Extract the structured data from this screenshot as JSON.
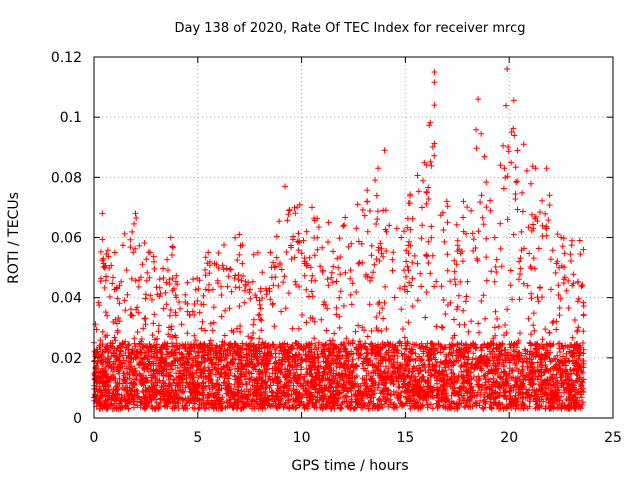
{
  "chart_data": {
    "type": "scatter",
    "title": "Day 138 of 2020, Rate Of TEC Index for receiver mrcg",
    "xlabel": "GPS time / hours",
    "ylabel": "ROTI / TECUs",
    "xlim": [
      0,
      25
    ],
    "ylim": [
      0,
      0.12
    ],
    "xticks": [
      0,
      5,
      10,
      15,
      20,
      25
    ],
    "yticks": [
      0,
      0.02,
      0.04,
      0.06,
      0.08,
      0.1,
      0.12
    ],
    "xtick_labels": [
      "0",
      "5",
      "10",
      "15",
      "20",
      "25"
    ],
    "ytick_labels": [
      "0",
      "0.02",
      "0.04",
      "0.06",
      "0.08",
      "0.1",
      "0.12"
    ],
    "grid": true,
    "marker": "+",
    "color": "#ff0000",
    "data_x_range": [
      0,
      23.6
    ],
    "typical_background_range": [
      0.003,
      0.025
    ],
    "envelope": [
      {
        "x": 0.0,
        "y": 0.025
      },
      {
        "x": 0.4,
        "y": 0.068
      },
      {
        "x": 1.0,
        "y": 0.055
      },
      {
        "x": 2.0,
        "y": 0.068
      },
      {
        "x": 2.7,
        "y": 0.055
      },
      {
        "x": 3.7,
        "y": 0.06
      },
      {
        "x": 4.5,
        "y": 0.045
      },
      {
        "x": 5.5,
        "y": 0.055
      },
      {
        "x": 7.0,
        "y": 0.061
      },
      {
        "x": 8.5,
        "y": 0.055
      },
      {
        "x": 9.2,
        "y": 0.077
      },
      {
        "x": 10.5,
        "y": 0.07
      },
      {
        "x": 11.3,
        "y": 0.065
      },
      {
        "x": 12.7,
        "y": 0.071
      },
      {
        "x": 14.0,
        "y": 0.089
      },
      {
        "x": 14.8,
        "y": 0.06
      },
      {
        "x": 16.4,
        "y": 0.115
      },
      {
        "x": 17.0,
        "y": 0.072
      },
      {
        "x": 17.8,
        "y": 0.072
      },
      {
        "x": 18.5,
        "y": 0.106
      },
      {
        "x": 19.3,
        "y": 0.06
      },
      {
        "x": 19.9,
        "y": 0.116
      },
      {
        "x": 20.7,
        "y": 0.091
      },
      {
        "x": 21.8,
        "y": 0.083
      },
      {
        "x": 22.5,
        "y": 0.06
      },
      {
        "x": 23.4,
        "y": 0.059
      }
    ]
  }
}
